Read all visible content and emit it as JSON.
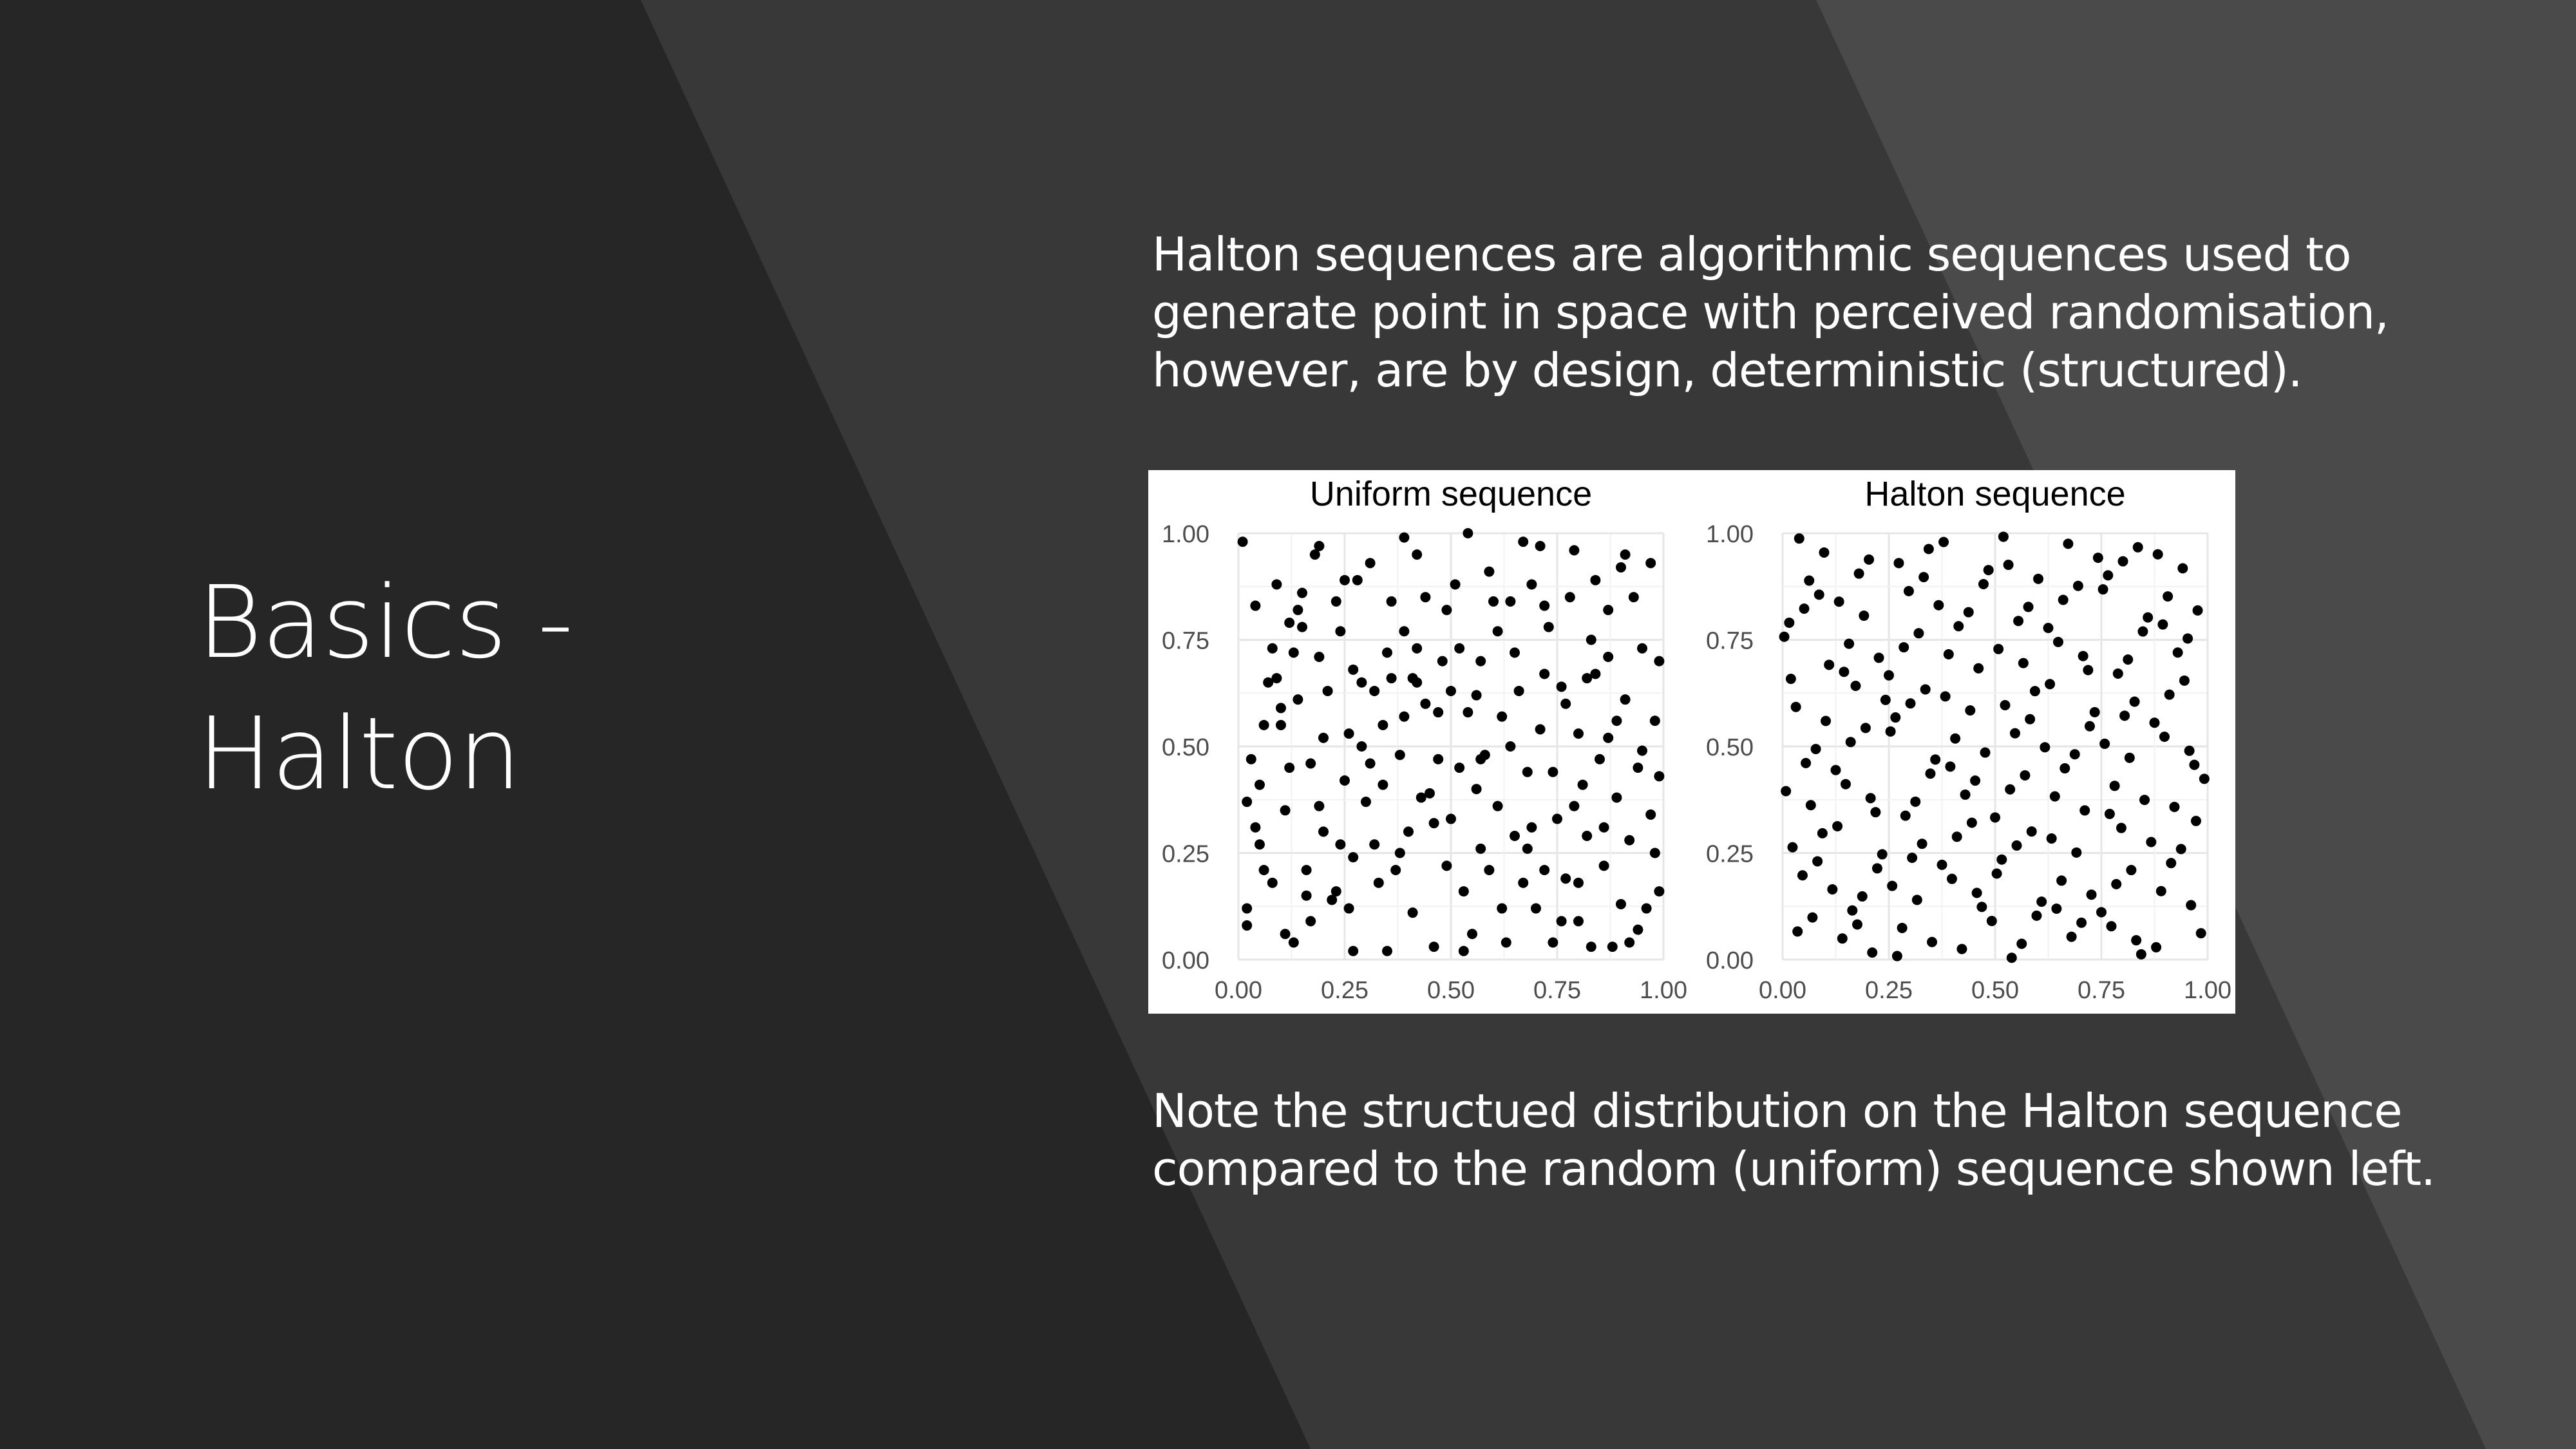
{
  "slide": {
    "title_lines": [
      "Basics -",
      "Halton"
    ],
    "intro_lines": [
      "Halton sequences are algorithmic sequences used to",
      "generate point in space with perceived randomisation,",
      "however, are by design, deterministic (structured)."
    ],
    "note_lines": [
      "Note the structued distribution on the Halton sequence",
      "compared to the random (uniform) sequence shown left."
    ],
    "background_colors": {
      "dark": "#262626",
      "mid": "#383838",
      "light": "#4a4a4a"
    }
  },
  "chart_data": [
    {
      "type": "scatter",
      "title": "Uniform sequence",
      "xlabel": "",
      "ylabel": "",
      "xlim": [
        0,
        1
      ],
      "ylim": [
        0,
        1
      ],
      "xticks": [
        "0.00",
        "0.25",
        "0.50",
        "0.75",
        "1.00"
      ],
      "yticks": [
        "0.00",
        "0.25",
        "0.50",
        "0.75",
        "1.00"
      ],
      "grid": true,
      "point_color": "#000000",
      "points": [
        [
          0.01,
          0.98
        ],
        [
          0.02,
          0.08
        ],
        [
          0.02,
          0.37
        ],
        [
          0.03,
          0.47
        ],
        [
          0.04,
          0.83
        ],
        [
          0.05,
          0.41
        ],
        [
          0.06,
          0.21
        ],
        [
          0.07,
          0.65
        ],
        [
          0.08,
          0.18
        ],
        [
          0.09,
          0.66
        ],
        [
          0.1,
          0.55
        ],
        [
          0.1,
          0.59
        ],
        [
          0.11,
          0.06
        ],
        [
          0.12,
          0.45
        ],
        [
          0.13,
          0.04
        ],
        [
          0.14,
          0.82
        ],
        [
          0.15,
          0.86
        ],
        [
          0.15,
          0.78
        ],
        [
          0.16,
          0.21
        ],
        [
          0.17,
          0.46
        ],
        [
          0.18,
          0.95
        ],
        [
          0.19,
          0.97
        ],
        [
          0.19,
          0.71
        ],
        [
          0.2,
          0.3
        ],
        [
          0.21,
          0.63
        ],
        [
          0.22,
          0.14
        ],
        [
          0.23,
          0.16
        ],
        [
          0.24,
          0.77
        ],
        [
          0.25,
          0.42
        ],
        [
          0.25,
          0.89
        ],
        [
          0.26,
          0.53
        ],
        [
          0.27,
          0.24
        ],
        [
          0.28,
          0.89
        ],
        [
          0.29,
          0.65
        ],
        [
          0.3,
          0.37
        ],
        [
          0.31,
          0.93
        ],
        [
          0.32,
          0.63
        ],
        [
          0.33,
          0.18
        ],
        [
          0.34,
          0.41
        ],
        [
          0.35,
          0.72
        ],
        [
          0.36,
          0.84
        ],
        [
          0.37,
          0.21
        ],
        [
          0.38,
          0.25
        ],
        [
          0.39,
          0.99
        ],
        [
          0.39,
          0.57
        ],
        [
          0.4,
          0.3
        ],
        [
          0.41,
          0.66
        ],
        [
          0.42,
          0.73
        ],
        [
          0.43,
          0.38
        ],
        [
          0.44,
          0.6
        ],
        [
          0.45,
          0.39
        ],
        [
          0.46,
          0.32
        ],
        [
          0.47,
          0.58
        ],
        [
          0.48,
          0.7
        ],
        [
          0.49,
          0.82
        ],
        [
          0.5,
          0.33
        ],
        [
          0.51,
          0.88
        ],
        [
          0.52,
          0.45
        ],
        [
          0.52,
          0.73
        ],
        [
          0.53,
          0.16
        ],
        [
          0.54,
          1.0
        ],
        [
          0.55,
          0.06
        ],
        [
          0.56,
          0.62
        ],
        [
          0.57,
          0.26
        ],
        [
          0.58,
          0.48
        ],
        [
          0.59,
          0.21
        ],
        [
          0.6,
          0.84
        ],
        [
          0.61,
          0.36
        ],
        [
          0.62,
          0.57
        ],
        [
          0.63,
          0.04
        ],
        [
          0.64,
          0.84
        ],
        [
          0.65,
          0.29
        ],
        [
          0.66,
          0.63
        ],
        [
          0.67,
          0.18
        ],
        [
          0.68,
          0.44
        ],
        [
          0.69,
          0.88
        ],
        [
          0.7,
          0.12
        ],
        [
          0.71,
          0.54
        ],
        [
          0.72,
          0.21
        ],
        [
          0.73,
          0.78
        ],
        [
          0.74,
          0.04
        ],
        [
          0.75,
          0.33
        ],
        [
          0.76,
          0.64
        ],
        [
          0.77,
          0.19
        ],
        [
          0.78,
          0.85
        ],
        [
          0.79,
          0.36
        ],
        [
          0.8,
          0.18
        ],
        [
          0.8,
          0.53
        ],
        [
          0.81,
          0.41
        ],
        [
          0.82,
          0.66
        ],
        [
          0.83,
          0.03
        ],
        [
          0.84,
          0.89
        ],
        [
          0.85,
          0.47
        ],
        [
          0.86,
          0.22
        ],
        [
          0.87,
          0.71
        ],
        [
          0.88,
          0.03
        ],
        [
          0.89,
          0.38
        ],
        [
          0.9,
          0.92
        ],
        [
          0.9,
          0.13
        ],
        [
          0.91,
          0.61
        ],
        [
          0.92,
          0.28
        ],
        [
          0.93,
          0.85
        ],
        [
          0.94,
          0.45
        ],
        [
          0.95,
          0.73
        ],
        [
          0.96,
          0.12
        ],
        [
          0.97,
          0.34
        ],
        [
          0.97,
          0.93
        ],
        [
          0.98,
          0.56
        ],
        [
          0.99,
          0.16
        ],
        [
          0.99,
          0.7
        ],
        [
          0.02,
          0.12
        ],
        [
          0.05,
          0.27
        ],
        [
          0.08,
          0.73
        ],
        [
          0.11,
          0.35
        ],
        [
          0.14,
          0.61
        ],
        [
          0.17,
          0.09
        ],
        [
          0.2,
          0.52
        ],
        [
          0.23,
          0.84
        ],
        [
          0.26,
          0.12
        ],
        [
          0.29,
          0.5
        ],
        [
          0.32,
          0.27
        ],
        [
          0.35,
          0.02
        ],
        [
          0.38,
          0.48
        ],
        [
          0.41,
          0.11
        ],
        [
          0.44,
          0.85
        ],
        [
          0.47,
          0.47
        ],
        [
          0.5,
          0.63
        ],
        [
          0.53,
          0.02
        ],
        [
          0.56,
          0.4
        ],
        [
          0.59,
          0.91
        ],
        [
          0.62,
          0.12
        ],
        [
          0.65,
          0.72
        ],
        [
          0.68,
          0.26
        ],
        [
          0.71,
          0.97
        ],
        [
          0.74,
          0.44
        ],
        [
          0.77,
          0.6
        ],
        [
          0.8,
          0.09
        ],
        [
          0.83,
          0.75
        ],
        [
          0.86,
          0.31
        ],
        [
          0.89,
          0.56
        ],
        [
          0.92,
          0.04
        ],
        [
          0.95,
          0.49
        ],
        [
          0.98,
          0.25
        ],
        [
          0.06,
          0.55
        ],
        [
          0.13,
          0.72
        ],
        [
          0.19,
          0.36
        ],
        [
          0.27,
          0.68
        ],
        [
          0.34,
          0.55
        ],
        [
          0.42,
          0.95
        ],
        [
          0.49,
          0.22
        ],
        [
          0.57,
          0.7
        ],
        [
          0.64,
          0.5
        ],
        [
          0.72,
          0.67
        ],
        [
          0.79,
          0.96
        ],
        [
          0.87,
          0.82
        ],
        [
          0.94,
          0.07
        ],
        [
          0.16,
          0.15
        ],
        [
          0.31,
          0.46
        ],
        [
          0.46,
          0.03
        ],
        [
          0.61,
          0.77
        ],
        [
          0.76,
          0.09
        ],
        [
          0.91,
          0.95
        ],
        [
          0.09,
          0.88
        ],
        [
          0.24,
          0.27
        ],
        [
          0.39,
          0.77
        ],
        [
          0.54,
          0.58
        ],
        [
          0.69,
          0.31
        ],
        [
          0.84,
          0.67
        ],
        [
          0.99,
          0.43
        ],
        [
          0.12,
          0.79
        ],
        [
          0.27,
          0.02
        ],
        [
          0.42,
          0.65
        ],
        [
          0.57,
          0.47
        ],
        [
          0.72,
          0.83
        ],
        [
          0.87,
          0.52
        ],
        [
          0.04,
          0.31
        ],
        [
          0.36,
          0.66
        ],
        [
          0.67,
          0.98
        ],
        [
          0.82,
          0.29
        ]
      ]
    },
    {
      "type": "scatter",
      "title": "Halton sequence",
      "xlabel": "",
      "ylabel": "",
      "xlim": [
        0,
        1
      ],
      "ylim": [
        0,
        1
      ],
      "xticks": [
        "0.00",
        "0.25",
        "0.50",
        "0.75",
        "1.00"
      ],
      "yticks": [
        "0.00",
        "0.25",
        "0.50",
        "0.75",
        "1.00"
      ],
      "grid": true,
      "point_color": "#000000",
      "halton_points": 180,
      "halton_bases": [
        2,
        3
      ]
    }
  ]
}
